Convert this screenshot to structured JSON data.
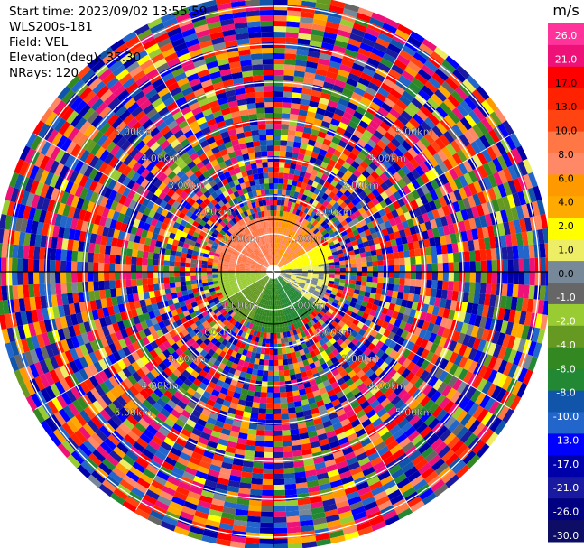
{
  "info": {
    "start_time": "Start time: 2023/09/02 13:55:59",
    "instrument": "WLS200s-181",
    "field": "Field: VEL",
    "elevation": "Elevation(deg): 35.30",
    "nrays": "NRays: 120"
  },
  "chart_data": {
    "type": "ppi",
    "field": "VEL",
    "elevation_deg": 35.3,
    "n_rays": 120,
    "range_ring_labels": [
      "1.00km",
      "2.00km",
      "3.00km",
      "4.00km",
      "5.00km"
    ],
    "colorbar": {
      "unit": "m/s",
      "tick_labels": [
        "26.0",
        "21.0",
        "17.0",
        "13.0",
        "10.0",
        "8.0",
        "6.0",
        "4.0",
        "2.0",
        "1.0",
        "0.0",
        "-1.0",
        "-2.0",
        "-4.0",
        "-6.0",
        "-8.0",
        "-10.0",
        "-13.0",
        "-17.0",
        "-21.0",
        "-26.0",
        "-30.0"
      ],
      "colors": [
        "#ff3399",
        "#ee1177",
        "#ff0000",
        "#ff2200",
        "#ff4411",
        "#ff7744",
        "#ff8866",
        "#ff9900",
        "#ffaa00",
        "#ffff00",
        "#eeee66",
        "#778899",
        "#666666",
        "#99cc33",
        "#669922",
        "#338822",
        "#228833",
        "#1155aa",
        "#2266cc",
        "#0000ff",
        "#0000aa",
        "#1a1aa0",
        "#000080",
        "#0d0d66"
      ]
    },
    "near_field": [
      {
        "azimuth_from": 0,
        "azimuth_to": 60,
        "velocity_range": [
          4,
          8
        ],
        "description_color": "#ff9900"
      },
      {
        "azimuth_from": 60,
        "azimuth_to": 80,
        "velocity_range": [
          1,
          2
        ],
        "description_color": "#ffff00"
      },
      {
        "azimuth_from": 80,
        "azimuth_to": 130,
        "velocity_range": [
          -1,
          1
        ],
        "description_color": "#778899"
      },
      {
        "azimuth_from": 130,
        "azimuth_to": 165,
        "velocity_range": [
          -10,
          -8
        ],
        "description_color": "#2266cc"
      },
      {
        "azimuth_from": 165,
        "azimuth_to": 205,
        "velocity_range": [
          -8,
          -6
        ],
        "description_color": "#2266cc"
      },
      {
        "azimuth_from": 205,
        "azimuth_to": 240,
        "velocity_range": [
          -6,
          -4
        ],
        "description_color": "#338822"
      },
      {
        "azimuth_from": 240,
        "azimuth_to": 270,
        "velocity_range": [
          -4,
          -2
        ],
        "description_color": "#99cc33"
      },
      {
        "azimuth_from": 270,
        "azimuth_to": 360,
        "velocity_range": [
          6,
          10
        ],
        "description_color": "#ff7744"
      }
    ]
  }
}
